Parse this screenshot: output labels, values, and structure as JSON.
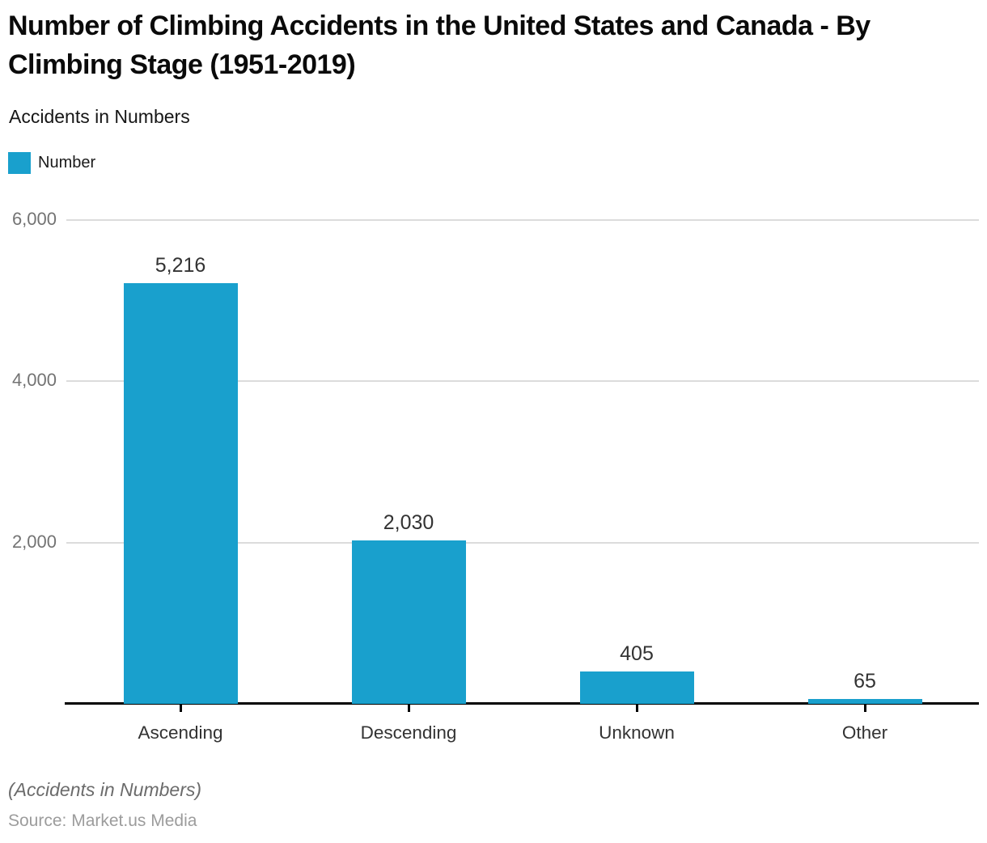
{
  "header": {
    "title": "Number of Climbing Accidents in the United States and Canada - By Climbing Stage (1951-2019)",
    "subtitle": "Accidents in Numbers"
  },
  "legend": {
    "label": "Number"
  },
  "chart_data": {
    "type": "bar",
    "title": "Number of Climbing Accidents in the United States and Canada - By Climbing Stage (1951-2019)",
    "categories": [
      "Ascending",
      "Descending",
      "Unknown",
      "Other"
    ],
    "series": [
      {
        "name": "Number",
        "values": [
          5216,
          2030,
          405,
          65
        ]
      }
    ],
    "value_labels": [
      "5,216",
      "2,030",
      "405",
      "65"
    ],
    "xlabel": "",
    "ylabel": "Accidents in Numbers",
    "ylim": [
      0,
      6000
    ],
    "yticks": [
      2000,
      4000,
      6000
    ],
    "ytick_labels": [
      "2,000",
      "4,000",
      "6,000"
    ],
    "grid": true,
    "legend_position": "top-left"
  },
  "footer": {
    "note": "(Accidents in Numbers)",
    "source": "Source: Market.us Media"
  },
  "colors": {
    "accent": "#19A0CD",
    "grid": "#DCDCDC",
    "axis": "#000000",
    "ytick_label": "#737373",
    "value_label": "#333333",
    "title": "#0A0A0A"
  }
}
